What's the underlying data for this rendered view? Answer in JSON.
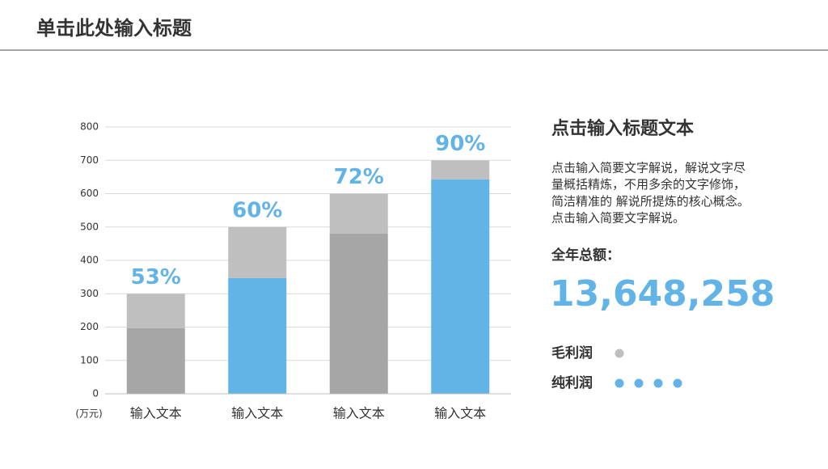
{
  "header": {
    "title": "单击此处输入标题"
  },
  "chart_data": {
    "type": "stacked_bar",
    "categories": [
      "输入文本",
      "输入文本",
      "输入文本",
      "输入文本"
    ],
    "series": [
      {
        "values": [
          197,
          347,
          480,
          643
        ],
        "colors": [
          "#a6a6a6",
          "#62b4e6",
          "#a6a6a6",
          "#62b4e6"
        ]
      },
      {
        "values": [
          103,
          153,
          120,
          57
        ],
        "color": "#bfbfbf"
      }
    ],
    "annotations": [
      "53%",
      "60%",
      "72%",
      "90%"
    ],
    "annotation_color": "#62b4e6",
    "y_unit": "(万元)",
    "ylim": [
      0,
      800
    ],
    "yticks": [
      0,
      100,
      200,
      300,
      400,
      500,
      600,
      700,
      800
    ],
    "grid": true
  },
  "panel": {
    "heading": "点击输入标题文本",
    "body": [
      "点击输入简要文字解说，解说文字尽",
      "量概括精炼，不用多余的文字修饰，",
      "简洁精准的 解说所提炼的核心概念。",
      "点击输入简要文字解说。"
    ],
    "total_label": "全年总额：",
    "total": "13,648,258",
    "legend": [
      {
        "label": "毛利润",
        "dots": 1,
        "color": "#bfbfbf"
      },
      {
        "label": "纯利润",
        "dots": 4,
        "color": "#62b4e6"
      }
    ]
  }
}
